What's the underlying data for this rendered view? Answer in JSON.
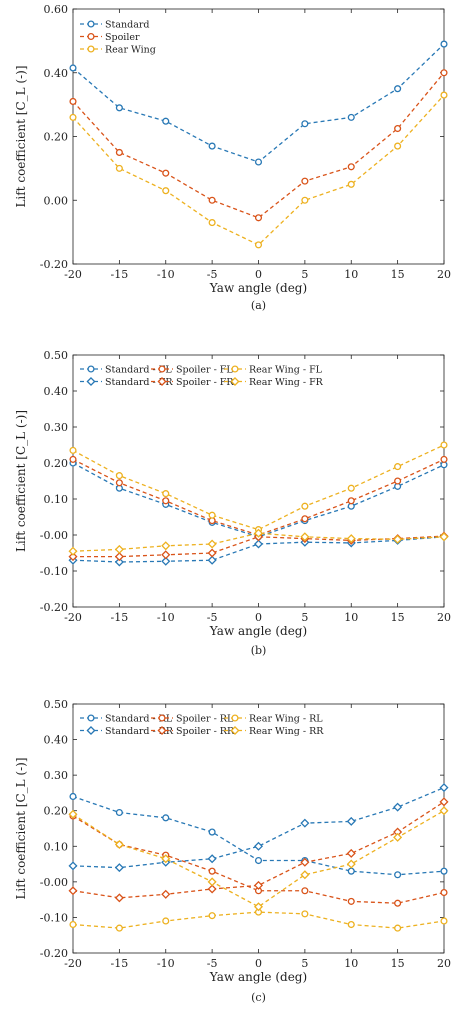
{
  "chart_data": [
    {
      "type": "line",
      "caption": "(a)",
      "xlabel": "Yaw angle (deg)",
      "ylabel": "Lift coefficient [C_L (-)]",
      "x": [
        -20,
        -15,
        -10,
        -5,
        0,
        5,
        10,
        15,
        20
      ],
      "xticks": [
        "-20",
        "-15",
        "-10",
        "-5",
        "0",
        "5",
        "10",
        "15",
        "20"
      ],
      "xlim": [
        -20,
        20
      ],
      "ylim": [
        -0.2,
        0.6
      ],
      "yticks": [
        -0.2,
        0.0,
        0.2,
        0.4,
        0.6
      ],
      "ytick_labels": [
        "-0.20",
        "0.00",
        "0.20",
        "0.40",
        "0.60"
      ],
      "grid": false,
      "legend_position": "top-left",
      "series": [
        {
          "name": "Standard",
          "color": "#2878b5",
          "marker": "circle",
          "values": [
            0.415,
            0.29,
            0.248,
            0.17,
            0.12,
            0.24,
            0.26,
            0.35,
            0.49
          ]
        },
        {
          "name": "Spoiler",
          "color": "#d95319",
          "marker": "circle",
          "values": [
            0.31,
            0.15,
            0.085,
            0.0,
            -0.055,
            0.06,
            0.105,
            0.225,
            0.4
          ]
        },
        {
          "name": "Rear Wing",
          "color": "#edb120",
          "marker": "circle",
          "values": [
            0.26,
            0.1,
            0.03,
            -0.07,
            -0.14,
            0.0,
            0.05,
            0.17,
            0.33
          ]
        }
      ]
    },
    {
      "type": "line",
      "caption": "(b)",
      "xlabel": "Yaw angle (deg)",
      "ylabel": "Lift coefficient [C_L (-)]",
      "x": [
        -20,
        -15,
        -10,
        -5,
        0,
        5,
        10,
        15,
        20
      ],
      "xticks": [
        "-20",
        "-15",
        "-10",
        "-5",
        "0",
        "5",
        "10",
        "15",
        "20"
      ],
      "xlim": [
        -20,
        20
      ],
      "ylim": [
        -0.2,
        0.5
      ],
      "yticks": [
        -0.2,
        -0.1,
        0.0,
        0.1,
        0.2,
        0.3,
        0.4,
        0.5
      ],
      "ytick_labels": [
        "-0.20",
        "-0.10",
        "-0.00",
        "0.10",
        "0.20",
        "0.30",
        "0.40",
        "0.50"
      ],
      "grid": false,
      "legend_position": "top-right",
      "series": [
        {
          "name": "Standard - FL",
          "color": "#2878b5",
          "marker": "circle",
          "values": [
            0.2,
            0.13,
            0.085,
            0.035,
            -0.005,
            0.04,
            0.08,
            0.135,
            0.195
          ]
        },
        {
          "name": "Standard - FR",
          "color": "#2878b5",
          "marker": "diamond",
          "values": [
            -0.07,
            -0.075,
            -0.073,
            -0.07,
            -0.025,
            -0.02,
            -0.022,
            -0.015,
            -0.005
          ]
        },
        {
          "name": "Spoiler - FL",
          "color": "#d95319",
          "marker": "circle",
          "values": [
            0.21,
            0.145,
            0.095,
            0.04,
            0.0,
            0.045,
            0.095,
            0.15,
            0.21
          ]
        },
        {
          "name": "Spoiler - FR",
          "color": "#d95319",
          "marker": "diamond",
          "values": [
            -0.06,
            -0.06,
            -0.055,
            -0.05,
            -0.005,
            -0.01,
            -0.015,
            -0.01,
            -0.003
          ]
        },
        {
          "name": "Rear Wing - FL",
          "color": "#edb120",
          "marker": "circle",
          "values": [
            0.235,
            0.165,
            0.115,
            0.055,
            0.015,
            0.08,
            0.13,
            0.19,
            0.25
          ]
        },
        {
          "name": "Rear Wing - FR",
          "color": "#edb120",
          "marker": "diamond",
          "values": [
            -0.045,
            -0.04,
            -0.03,
            -0.025,
            0.005,
            -0.005,
            -0.01,
            -0.012,
            -0.005
          ]
        }
      ]
    },
    {
      "type": "line",
      "caption": "(c)",
      "xlabel": "Yaw angle (deg)",
      "ylabel": "Lift coefficient [C_L (-)]",
      "x": [
        -20,
        -15,
        -10,
        -5,
        0,
        5,
        10,
        15,
        20
      ],
      "xticks": [
        "-20",
        "-15",
        "-10",
        "-5",
        "0",
        "5",
        "10",
        "15",
        "20"
      ],
      "xlim": [
        -20,
        20
      ],
      "ylim": [
        -0.2,
        0.5
      ],
      "yticks": [
        -0.2,
        -0.1,
        0.0,
        0.1,
        0.2,
        0.3,
        0.4,
        0.5
      ],
      "ytick_labels": [
        "-0.20",
        "-0.10",
        "-0.00",
        "0.10",
        "0.20",
        "0.30",
        "0.40",
        "0.50"
      ],
      "grid": false,
      "legend_position": "top-right",
      "series": [
        {
          "name": "Standard - RL",
          "color": "#2878b5",
          "marker": "circle",
          "values": [
            0.24,
            0.195,
            0.18,
            0.14,
            0.06,
            0.06,
            0.03,
            0.02,
            0.03
          ]
        },
        {
          "name": "Standard - RR",
          "color": "#2878b5",
          "marker": "diamond",
          "values": [
            0.045,
            0.04,
            0.055,
            0.065,
            0.1,
            0.165,
            0.17,
            0.21,
            0.265
          ]
        },
        {
          "name": "Spoiler - RL",
          "color": "#d95319",
          "marker": "circle",
          "values": [
            0.185,
            0.105,
            0.075,
            0.03,
            -0.025,
            -0.025,
            -0.055,
            -0.06,
            -0.03
          ]
        },
        {
          "name": "Spoiler - RR",
          "color": "#d95319",
          "marker": "diamond",
          "values": [
            -0.025,
            -0.045,
            -0.035,
            -0.02,
            -0.01,
            0.055,
            0.08,
            0.14,
            0.225
          ]
        },
        {
          "name": "Rear Wing - RL",
          "color": "#edb120",
          "marker": "circle",
          "values": [
            -0.12,
            -0.13,
            -0.11,
            -0.095,
            -0.085,
            -0.09,
            -0.12,
            -0.13,
            -0.11
          ]
        },
        {
          "name": "Rear Wing - RR",
          "color": "#edb120",
          "marker": "diamond",
          "values": [
            0.19,
            0.105,
            0.065,
            0.0,
            -0.07,
            0.02,
            0.05,
            0.125,
            0.2
          ]
        }
      ]
    }
  ]
}
